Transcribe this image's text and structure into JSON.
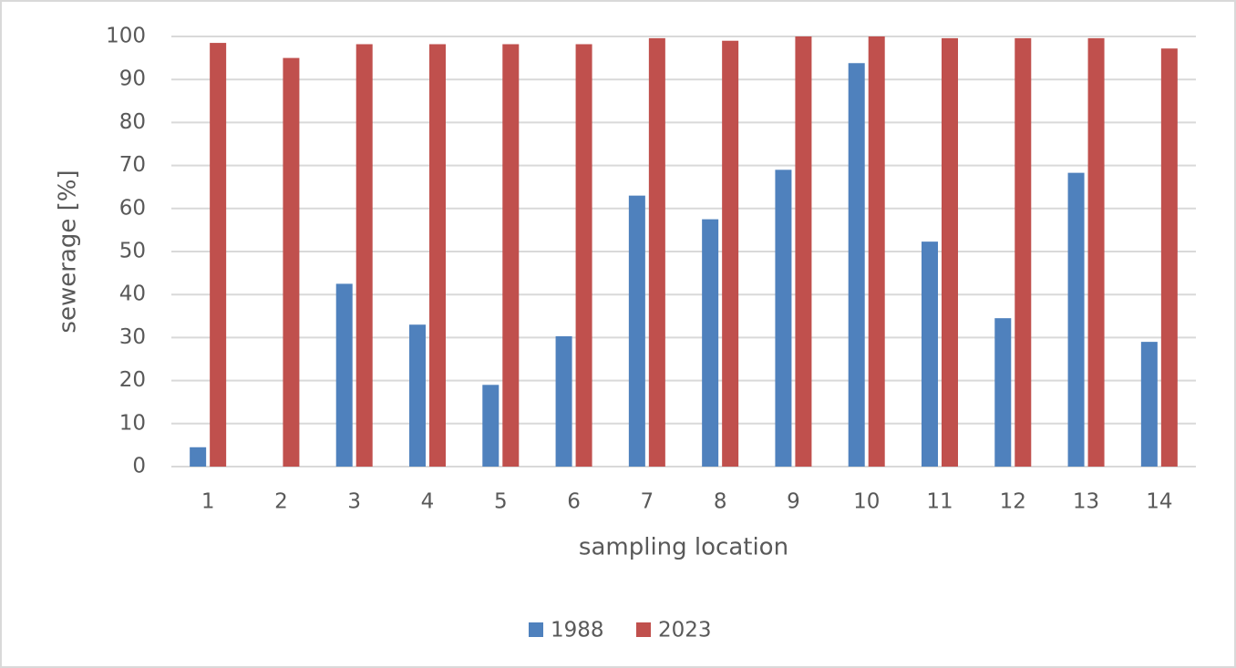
{
  "chart_data": {
    "type": "bar",
    "x_label": "sampling location",
    "y_label": "sewerage [%]",
    "categories": [
      "1",
      "2",
      "3",
      "4",
      "5",
      "6",
      "7",
      "8",
      "9",
      "10",
      "11",
      "12",
      "13",
      "14"
    ],
    "series": [
      {
        "name": "1988",
        "color": "#4f81bd",
        "values": [
          4.5,
          0,
          42.5,
          33,
          19,
          30.3,
          63,
          57.5,
          69,
          93.8,
          52.3,
          34.5,
          68.3,
          29
        ]
      },
      {
        "name": "2023",
        "color": "#c0504d",
        "values": [
          98.5,
          95,
          98.2,
          98.2,
          98.2,
          98.2,
          99.6,
          99,
          100,
          100,
          99.6,
          99.6,
          99.6,
          97.2
        ]
      }
    ],
    "ylim": [
      0,
      100
    ],
    "yticks": [
      0,
      10,
      20,
      30,
      40,
      50,
      60,
      70,
      80,
      90,
      100
    ],
    "grid": true,
    "legend": "bottom"
  }
}
